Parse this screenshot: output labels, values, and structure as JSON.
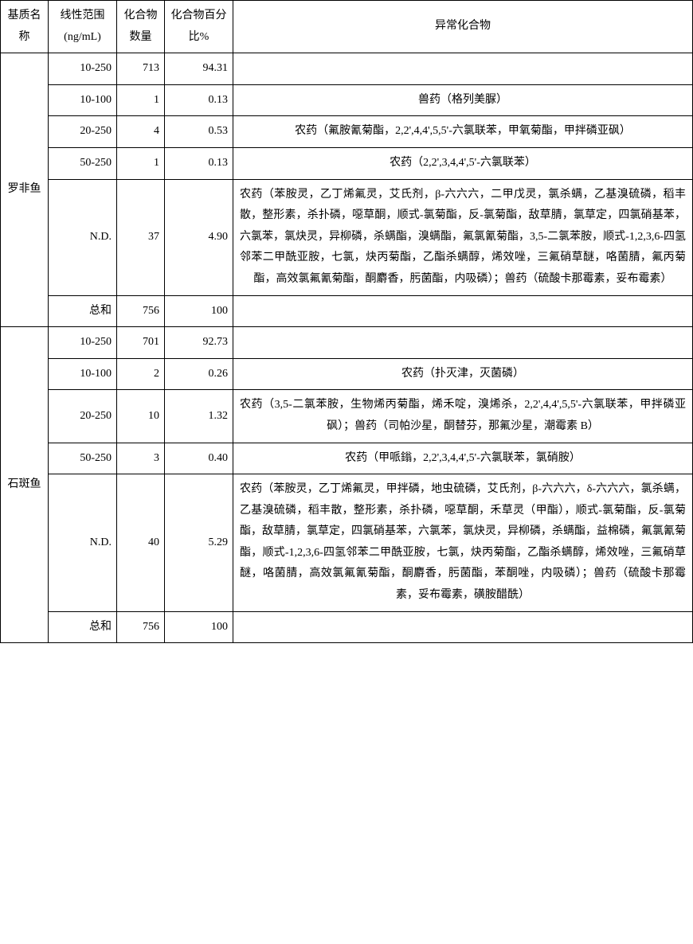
{
  "header": {
    "matrix": "基质名称",
    "range": "线性范围 (ng/mL)",
    "count": "化合物数量",
    "pct": "化合物百分比%",
    "compound": "异常化合物"
  },
  "groups": [
    {
      "matrix": "罗非鱼",
      "rows": [
        {
          "range": "10-250",
          "count": "713",
          "pct": "94.31",
          "compound": ""
        },
        {
          "range": "10-100",
          "count": "1",
          "pct": "0.13",
          "compound": "兽药（格列美脲）"
        },
        {
          "range": "20-250",
          "count": "4",
          "pct": "0.53",
          "compound": "农药（氟胺氰菊酯，2,2',4,4',5,5'-六氯联苯，甲氧菊酯，甲拌磷亚砜）"
        },
        {
          "range": "50-250",
          "count": "1",
          "pct": "0.13",
          "compound": "农药（2,2',3,4,4',5'-六氯联苯）"
        },
        {
          "range": "N.D.",
          "count": "37",
          "pct": "4.90",
          "compound": "农药（苯胺灵，乙丁烯氟灵，艾氏剂，β-六六六，二甲戊灵，氯杀螨，乙基溴硫磷，稻丰散，整形素，杀扑磷，噁草酮，顺式-氯菊酯，反-氯菊酯，敌草腈，氯草定，四氯硝基苯，六氯苯，氯炔灵，异柳磷，杀螨酯，溴螨酯，氟氯氰菊酯，3,5-二氯苯胺，顺式-1,2,3,6-四氢邻苯二甲酰亚胺，七氯，炔丙菊酯，乙酯杀螨醇，烯效唑，三氟硝草醚，咯菌腈，氟丙菊酯，高效氯氟氰菊酯，酮麝香，肟菌酯，内吸磷）；兽药（硫酸卡那霉素，妥布霉素）",
          "long": true
        },
        {
          "range": "总和",
          "count": "756",
          "pct": "100",
          "compound": ""
        }
      ]
    },
    {
      "matrix": "石斑鱼",
      "rows": [
        {
          "range": "10-250",
          "count": "701",
          "pct": "92.73",
          "compound": ""
        },
        {
          "range": "10-100",
          "count": "2",
          "pct": "0.26",
          "compound": "农药（扑灭津，灭菌磷）"
        },
        {
          "range": "20-250",
          "count": "10",
          "pct": "1.32",
          "compound": "农药（3,5-二氯苯胺，生物烯丙菊酯，烯禾啶，溴烯杀，2,2',4,4',5,5'-六氯联苯，甲拌磷亚砜）；兽药（司帕沙星，酮替芬，那氟沙星，潮霉素 B）",
          "long": true
        },
        {
          "range": "50-250",
          "count": "3",
          "pct": "0.40",
          "compound": "农药（甲哌鎓，2,2',3,4,4',5'-六氯联苯，氯硝胺）"
        },
        {
          "range": "N.D.",
          "count": "40",
          "pct": "5.29",
          "compound": "农药（苯胺灵，乙丁烯氟灵，甲拌磷，地虫硫磷，艾氏剂，β-六六六，δ-六六六，氯杀螨，乙基溴硫磷，稻丰散，整形素，杀扑磷，噁草酮，禾草灵（甲酯），顺式-氯菊酯，反-氯菊酯，敌草腈，氯草定，四氯硝基苯，六氯苯，氯炔灵，异柳磷，杀螨酯，益棉磷，氟氯氰菊酯，顺式-1,2,3,6-四氢邻苯二甲酰亚胺，七氯，炔丙菊酯，乙酯杀螨醇，烯效唑，三氟硝草醚，咯菌腈，高效氯氟氰菊酯，酮麝香，肟菌酯，苯酮唑，内吸磷）；兽药（硫酸卡那霉素，妥布霉素，磺胺醋酰）",
          "long": true
        },
        {
          "range": "总和",
          "count": "756",
          "pct": "100",
          "compound": ""
        }
      ]
    }
  ]
}
